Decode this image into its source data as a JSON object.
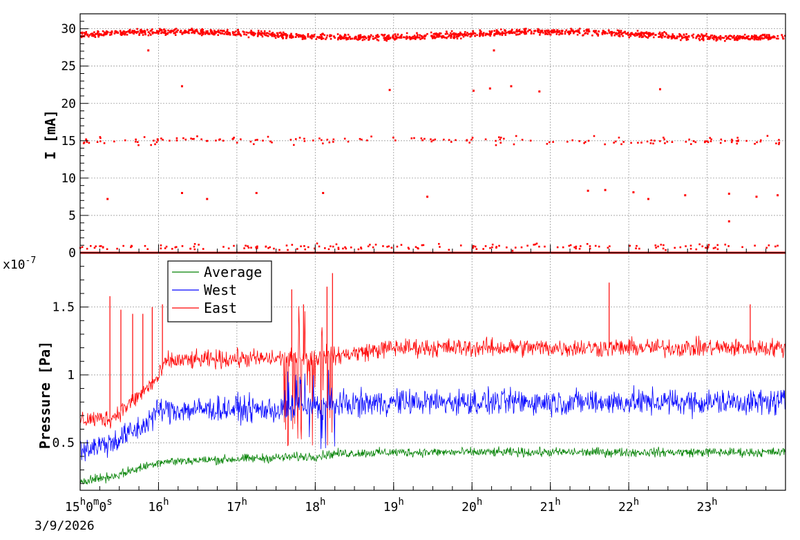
{
  "chart_data": [
    {
      "panel": "top",
      "type": "scatter",
      "ylabel": "I [mA]",
      "ylim": [
        0,
        32
      ],
      "yticks": [
        0,
        5,
        10,
        15,
        20,
        25,
        30
      ],
      "grid": true,
      "series": [
        {
          "color": "#ff0000",
          "bands": [
            {
              "level": 29.2,
              "spread": 0.6,
              "density": "dense"
            },
            {
              "level": 15.0,
              "spread": 0.8,
              "density": "sparse"
            },
            {
              "level": 0.8,
              "spread": 0.6,
              "density": "sparse"
            },
            {
              "level": 0.0,
              "spread": 0.0,
              "density": "continuous"
            }
          ],
          "outliers": [
            {
              "x": 15.87,
              "y": 27.1
            },
            {
              "x": 16.3,
              "y": 22.3
            },
            {
              "x": 18.95,
              "y": 21.8
            },
            {
              "x": 20.02,
              "y": 21.7
            },
            {
              "x": 20.23,
              "y": 22.0
            },
            {
              "x": 20.5,
              "y": 22.3
            },
            {
              "x": 20.86,
              "y": 21.6
            },
            {
              "x": 22.4,
              "y": 21.9
            },
            {
              "x": 20.28,
              "y": 27.1
            },
            {
              "x": 15.35,
              "y": 7.2
            },
            {
              "x": 16.3,
              "y": 8.0
            },
            {
              "x": 16.62,
              "y": 7.2
            },
            {
              "x": 17.25,
              "y": 8.0
            },
            {
              "x": 18.1,
              "y": 8.0
            },
            {
              "x": 19.43,
              "y": 7.5
            },
            {
              "x": 21.48,
              "y": 8.3
            },
            {
              "x": 21.7,
              "y": 8.4
            },
            {
              "x": 22.06,
              "y": 8.1
            },
            {
              "x": 22.25,
              "y": 7.2
            },
            {
              "x": 22.72,
              "y": 7.7
            },
            {
              "x": 23.28,
              "y": 7.9
            },
            {
              "x": 23.63,
              "y": 7.5
            },
            {
              "x": 23.9,
              "y": 7.7
            },
            {
              "x": 23.28,
              "y": 4.2
            }
          ]
        }
      ]
    },
    {
      "panel": "bottom",
      "type": "line",
      "ylabel": "Pressure [Pa]",
      "yscale_label": "x10",
      "yscale_exponent": "-7",
      "ylim": [
        0.15,
        1.9
      ],
      "yticks": [
        0.5,
        1,
        1.5
      ],
      "ytick_labels": [
        "0.5",
        "1",
        "1.5"
      ],
      "xlabel_date": "3/9/2026",
      "xlim": [
        15.0,
        24.0
      ],
      "xticks": [
        {
          "t": 15,
          "hour": "15",
          "sup1": "h",
          "mid": "0",
          "sup2": "m",
          "end": "0",
          "sup3": "s"
        },
        {
          "t": 16,
          "hour": "16",
          "sup1": "h"
        },
        {
          "t": 17,
          "hour": "17",
          "sup1": "h"
        },
        {
          "t": 18,
          "hour": "18",
          "sup1": "h"
        },
        {
          "t": 19,
          "hour": "19",
          "sup1": "h"
        },
        {
          "t": 20,
          "hour": "20",
          "sup1": "h"
        },
        {
          "t": 21,
          "hour": "21",
          "sup1": "h"
        },
        {
          "t": 22,
          "hour": "22",
          "sup1": "h"
        },
        {
          "t": 23,
          "hour": "23",
          "sup1": "h"
        }
      ],
      "grid": true,
      "legend_position": "top-left",
      "series": [
        {
          "name": "Average",
          "color": "#008000",
          "baseline": [
            [
              15.0,
              0.22
            ],
            [
              15.4,
              0.25
            ],
            [
              15.8,
              0.32
            ],
            [
              16.0,
              0.36
            ],
            [
              17.0,
              0.38
            ],
            [
              18.0,
              0.4
            ],
            [
              18.25,
              0.42
            ],
            [
              19.0,
              0.43
            ],
            [
              24.0,
              0.43
            ]
          ],
          "noise": 0.05
        },
        {
          "name": "West",
          "color": "#0000ff",
          "baseline": [
            [
              15.0,
              0.45
            ],
            [
              15.4,
              0.5
            ],
            [
              15.8,
              0.62
            ],
            [
              16.0,
              0.74
            ],
            [
              17.0,
              0.75
            ],
            [
              17.6,
              0.74
            ],
            [
              18.25,
              0.78
            ],
            [
              19.0,
              0.8
            ],
            [
              24.0,
              0.8
            ]
          ],
          "noise": 0.14
        },
        {
          "name": "East",
          "color": "#ff0000",
          "baseline": [
            [
              15.0,
              0.67
            ],
            [
              15.4,
              0.68
            ],
            [
              15.7,
              0.82
            ],
            [
              16.0,
              0.98
            ],
            [
              16.1,
              1.1
            ],
            [
              17.0,
              1.12
            ],
            [
              17.6,
              1.12
            ],
            [
              18.25,
              1.14
            ],
            [
              19.0,
              1.2
            ],
            [
              24.0,
              1.2
            ]
          ],
          "noise": 0.1,
          "spikes": [
            {
              "x": 15.38,
              "y": 1.58
            },
            {
              "x": 15.52,
              "y": 1.48
            },
            {
              "x": 15.67,
              "y": 1.45
            },
            {
              "x": 15.8,
              "y": 1.45
            },
            {
              "x": 15.92,
              "y": 1.5
            },
            {
              "x": 16.05,
              "y": 1.52
            },
            {
              "x": 17.7,
              "y": 1.63
            },
            {
              "x": 17.85,
              "y": 1.52
            },
            {
              "x": 18.15,
              "y": 1.65
            },
            {
              "x": 18.22,
              "y": 1.75
            },
            {
              "x": 21.75,
              "y": 1.68
            },
            {
              "x": 23.55,
              "y": 1.52
            }
          ]
        }
      ]
    }
  ]
}
